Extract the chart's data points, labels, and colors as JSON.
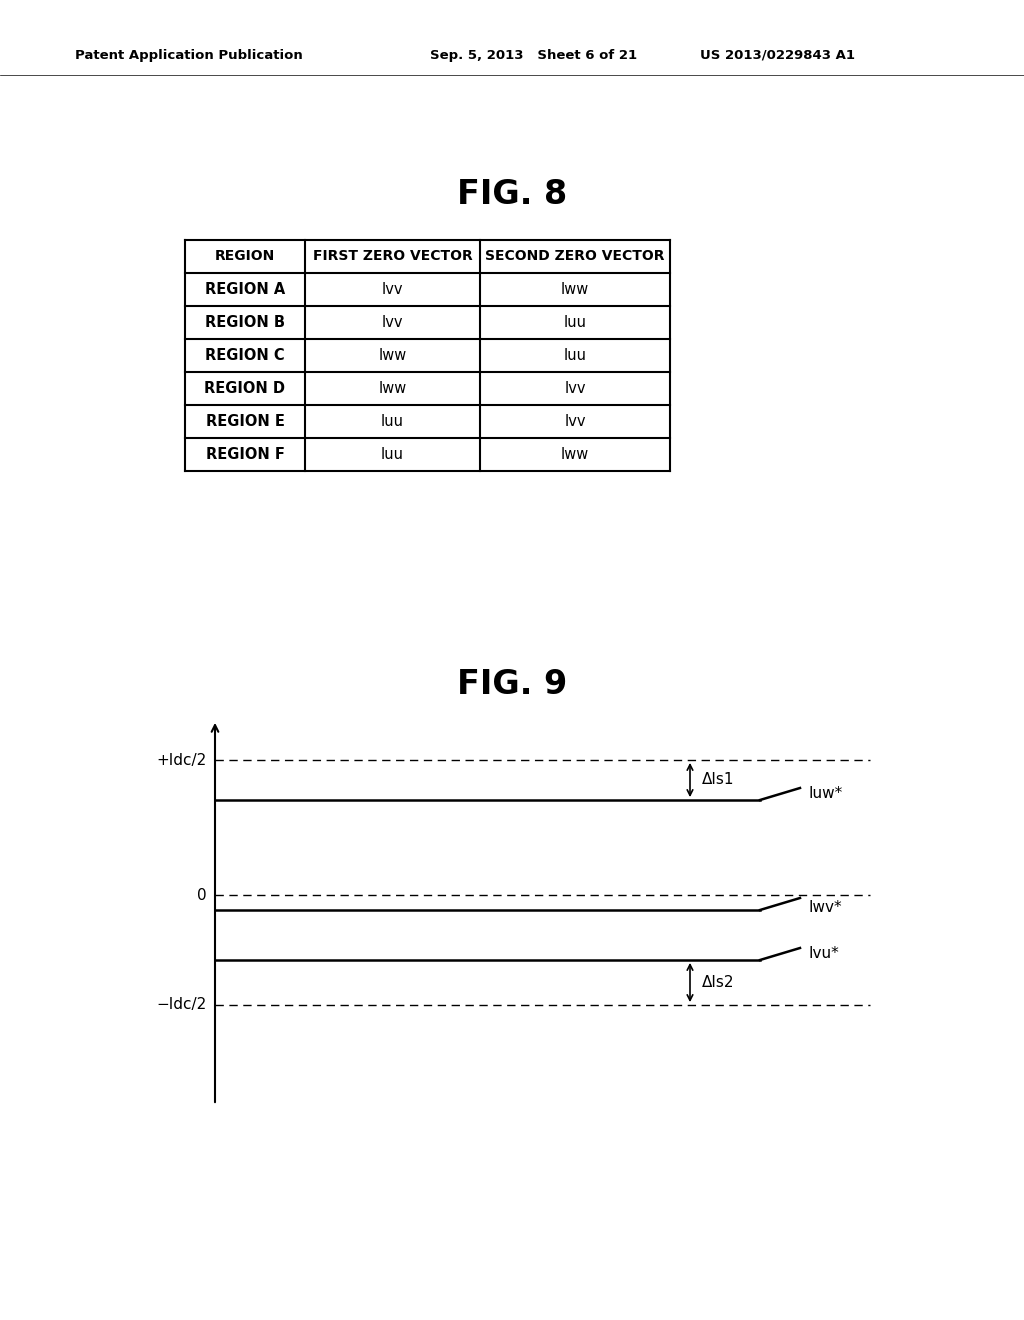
{
  "background_color": "#ffffff",
  "header_left": "Patent Application Publication",
  "header_center": "Sep. 5, 2013   Sheet 6 of 21",
  "header_right": "US 2013/0229843 A1",
  "fig8_title": "FIG. 8",
  "fig9_title": "FIG. 9",
  "table_headers": [
    "REGION",
    "FIRST ZERO VECTOR",
    "SECOND ZERO VECTOR"
  ],
  "table_rows": [
    [
      "REGION A",
      "Ivv",
      "Iww"
    ],
    [
      "REGION B",
      "Ivv",
      "Iuu"
    ],
    [
      "REGION C",
      "Iww",
      "Iuu"
    ],
    [
      "REGION D",
      "Iww",
      "Ivv"
    ],
    [
      "REGION E",
      "Iuu",
      "Ivv"
    ],
    [
      "REGION F",
      "Iuu",
      "Iww"
    ]
  ],
  "y_axis_label_pos": "+Idc/2",
  "y_axis_label_neg": "−Idc/2",
  "y_axis_label_zero": "0",
  "line_labels": [
    "Iuw*",
    "Iwv*",
    "Ivu*"
  ],
  "delta_label1": "ΔIs1",
  "delta_label2": "ΔIs2"
}
